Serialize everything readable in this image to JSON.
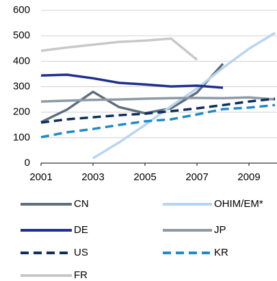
{
  "chart_data": {
    "type": "line",
    "x": [
      2001,
      2002,
      2003,
      2004,
      2005,
      2006,
      2007,
      2008,
      2009,
      2010
    ],
    "xlim": [
      2001,
      2010
    ],
    "xticks": [
      2001,
      2003,
      2005,
      2007,
      2009
    ],
    "ylim": [
      0,
      600
    ],
    "yticks": [
      0,
      100,
      200,
      300,
      400,
      500,
      600
    ],
    "grid": true,
    "series": [
      {
        "name": "CN",
        "color": "#5e6e7e",
        "dashed": false,
        "values": [
          161,
          210,
          280,
          220,
          196,
          215,
          277,
          390,
          null,
          null
        ]
      },
      {
        "name": "OHIM/EM*",
        "color": "#b9d4ee",
        "dashed": false,
        "values": [
          null,
          null,
          19,
          81,
          150,
          223,
          293,
          374,
          449,
          511
        ]
      },
      {
        "name": "DE",
        "color": "#1f2f8f",
        "dashed": false,
        "values": [
          344,
          347,
          333,
          315,
          309,
          301,
          304,
          296,
          null,
          null
        ]
      },
      {
        "name": "JP",
        "color": "#8c9aa6",
        "dashed": false,
        "values": [
          242,
          245,
          248,
          250,
          253,
          255,
          256,
          255,
          258,
          250
        ]
      },
      {
        "name": "US",
        "color": "#0e2f5a",
        "dashed": true,
        "values": [
          159,
          172,
          180,
          188,
          194,
          204,
          215,
          228,
          242,
          253
        ]
      },
      {
        "name": "KR",
        "color": "#1f8ac8",
        "dashed": true,
        "values": [
          102,
          121,
          134,
          150,
          164,
          172,
          191,
          212,
          218,
          228
        ]
      },
      {
        "name": "FR",
        "color": "#c8c8c8",
        "dashed": false,
        "values": [
          441,
          454,
          465,
          476,
          481,
          489,
          406,
          null,
          null,
          null
        ]
      }
    ]
  }
}
